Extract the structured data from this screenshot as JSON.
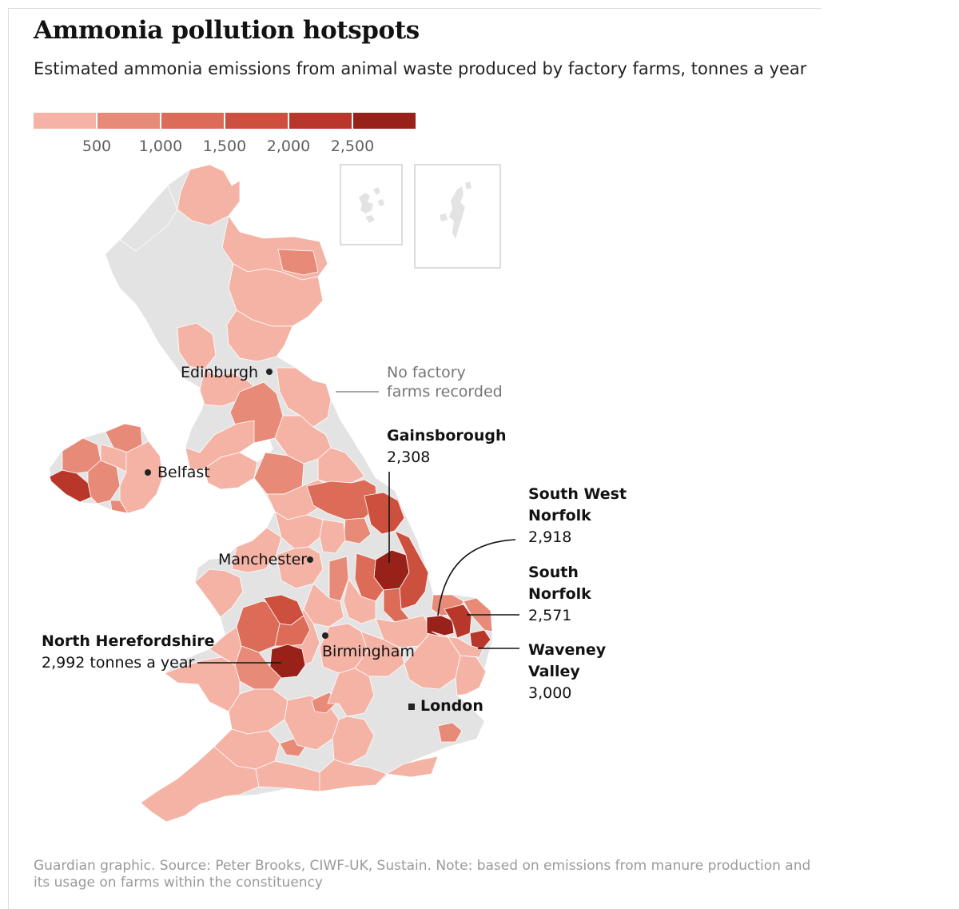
{
  "title": "Ammonia pollution hotspots",
  "subtitle": "Estimated ammonia emissions from animal waste produced by factory farms, tonnes a year",
  "legend": {
    "colors": [
      "#f4b3a5",
      "#e88a78",
      "#dc6b57",
      "#cd4f3d",
      "#b8372a",
      "#982219"
    ],
    "ticks": [
      "500",
      "1,000",
      "1,500",
      "2,000",
      "2,500"
    ],
    "no_data_color": "#e3e3e3"
  },
  "cities": {
    "edinburgh": "Edinburgh",
    "belfast": "Belfast",
    "manchester": "Manchester",
    "birmingham": "Birmingham",
    "london": "London"
  },
  "annotations": {
    "no_data_line1": "No factory",
    "no_data_line2": "farms recorded",
    "gainsborough_name": "Gainsborough",
    "gainsborough_value": "2,308",
    "swnorfolk_name1": "South West",
    "swnorfolk_name2": "Norfolk",
    "swnorfolk_value": "2,918",
    "snorfolk_name1": "South",
    "snorfolk_name2": "Norfolk",
    "snorfolk_value": "2,571",
    "waveney_name1": "Waveney",
    "waveney_name2": "Valley",
    "waveney_value": "3,000",
    "herefordshire_name": "North Herefordshire",
    "herefordshire_value": "2,992 tonnes a year"
  },
  "footnote": "Guardian graphic. Source: Peter Brooks, CIWF-UK, Sustain. Note: based on emissions from manure production and its usage on farms within the constituency"
}
